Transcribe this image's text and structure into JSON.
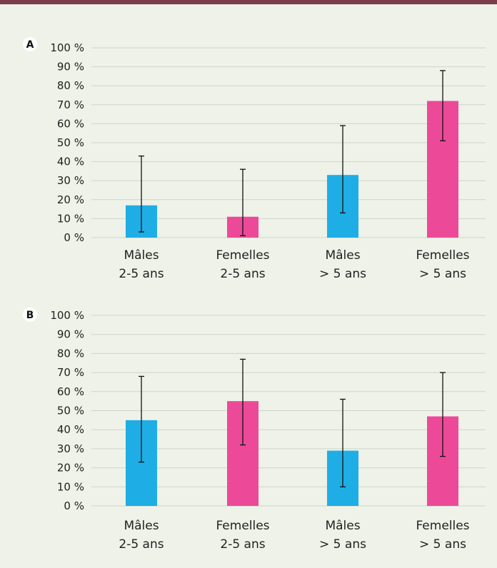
{
  "colors": {
    "male": "#1eaee5",
    "female": "#ec4a99",
    "background": "#eef2e8",
    "topbar": "#7a3e4a",
    "grid": "#cfd5c8",
    "errorbar": "#111111"
  },
  "chart_data": [
    {
      "type": "bar",
      "panel": "A",
      "categories": [
        [
          "Mâles",
          "2-5 ans"
        ],
        [
          "Femelles",
          "2-5 ans"
        ],
        [
          "Mâles",
          "> 5 ans"
        ],
        [
          "Femelles",
          "> 5 ans"
        ]
      ],
      "values": [
        17,
        11,
        33,
        72
      ],
      "error_low": [
        3,
        1,
        13,
        51
      ],
      "error_high": [
        43,
        36,
        59,
        88
      ],
      "bar_colors": [
        "male",
        "female",
        "male",
        "female"
      ],
      "yticks": [
        "0 %",
        "10 %",
        "20 %",
        "30 %",
        "40 %",
        "50 %",
        "60 %",
        "70 %",
        "80 %",
        "90 %",
        "100 %"
      ],
      "ylim": [
        0,
        100
      ],
      "grid": true
    },
    {
      "type": "bar",
      "panel": "B",
      "categories": [
        [
          "Mâles",
          "2-5 ans"
        ],
        [
          "Femelles",
          "2-5 ans"
        ],
        [
          "Mâles",
          "> 5 ans"
        ],
        [
          "Femelles",
          "> 5 ans"
        ]
      ],
      "values": [
        45,
        55,
        29,
        47
      ],
      "error_low": [
        23,
        32,
        10,
        26
      ],
      "error_high": [
        68,
        77,
        56,
        70
      ],
      "bar_colors": [
        "male",
        "female",
        "male",
        "female"
      ],
      "yticks": [
        "0 %",
        "10 %",
        "20 %",
        "30 %",
        "40 %",
        "50 %",
        "60 %",
        "70 %",
        "80 %",
        "90 %",
        "100 %"
      ],
      "ylim": [
        0,
        100
      ],
      "grid": true
    }
  ]
}
